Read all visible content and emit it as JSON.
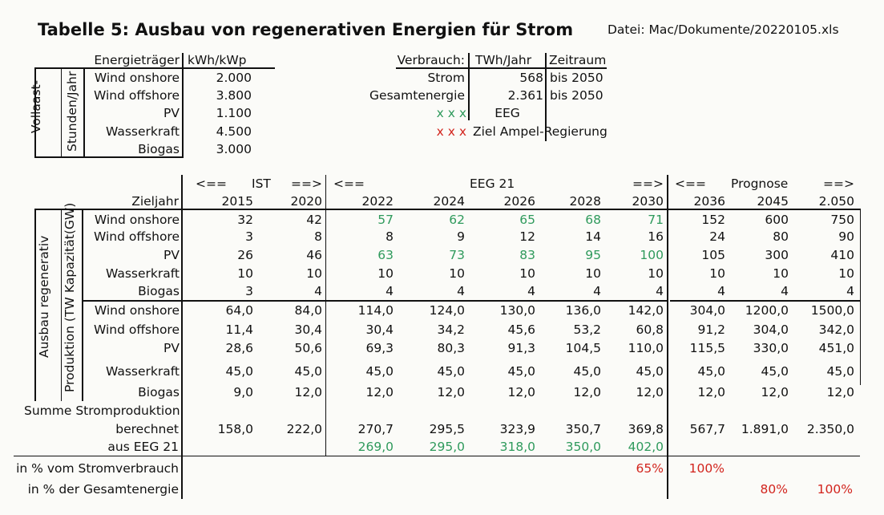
{
  "title": "Tabelle 5: Ausbau von regenerativen Energien für Strom",
  "file": "Datei: Mac/Dokumente/20220105.xls",
  "vollast": {
    "side1": "Vollaast-",
    "side2": "Stunden/Jahr",
    "h1": "Energieträger",
    "h2": "kWh/kWp",
    "rows": [
      {
        "label": "Wind onshore",
        "value": "2.000"
      },
      {
        "label": "Wind offshore",
        "value": "3.800"
      },
      {
        "label": "PV",
        "value": "1.100"
      },
      {
        "label": "Wasserkraft",
        "value": "4.500"
      },
      {
        "label": "Biogas",
        "value": "3.000"
      }
    ]
  },
  "verbrauch": {
    "h1": "Verbrauch:",
    "h2": "TWh/Jahr",
    "h3": "Zeitraum",
    "rows": [
      {
        "label": "Strom",
        "value": "568",
        "period": "bis 2050"
      },
      {
        "label": "Gesamtenergie",
        "value": "2.361",
        "period": "bis 2050"
      }
    ],
    "legend_green_marks": "x x x",
    "legend_green_text": "EEG",
    "legend_red_marks": "x x x",
    "legend_red_text": "Ziel Ampel-Regierung"
  },
  "main": {
    "side1": "Ausbau regenerativ",
    "side_kap": "Kapazität(GW)",
    "side_prod": "Produktion (TW",
    "zieljahr": "Zieljahr",
    "groups": [
      {
        "l": "<==",
        "name": "IST",
        "r": "==>"
      },
      {
        "l": "<==",
        "name": "EEG 21",
        "r": "==>"
      },
      {
        "l": "<==",
        "name": "Prognose",
        "r": "==>"
      }
    ],
    "years": [
      "2015",
      "2020",
      "2022",
      "2024",
      "2026",
      "2028",
      "2030",
      "2036",
      "2045",
      "2.050"
    ],
    "kap": [
      {
        "label": "Wind onshore",
        "values": [
          "32",
          "42",
          "57",
          "62",
          "65",
          "68",
          "71",
          "152",
          "600",
          "750"
        ]
      },
      {
        "label": "Wind offshore",
        "values": [
          "3",
          "8",
          "8",
          "9",
          "12",
          "14",
          "16",
          "24",
          "80",
          "90"
        ]
      },
      {
        "label": "PV",
        "values": [
          "26",
          "46",
          "63",
          "73",
          "83",
          "95",
          "100",
          "105",
          "300",
          "410"
        ]
      },
      {
        "label": "Wasserkraft",
        "values": [
          "10",
          "10",
          "10",
          "10",
          "10",
          "10",
          "10",
          "10",
          "10",
          "10"
        ]
      },
      {
        "label": "Biogas",
        "values": [
          "3",
          "4",
          "4",
          "4",
          "4",
          "4",
          "4",
          "4",
          "4",
          "4"
        ]
      }
    ],
    "prod": [
      {
        "label": "Wind onshore",
        "values": [
          "64,0",
          "84,0",
          "114,0",
          "124,0",
          "130,0",
          "136,0",
          "142,0",
          "304,0",
          "1200,0",
          "1500,0"
        ]
      },
      {
        "label": "Wind offshore",
        "values": [
          "11,4",
          "30,4",
          "30,4",
          "34,2",
          "45,6",
          "53,2",
          "60,8",
          "91,2",
          "304,0",
          "342,0"
        ]
      },
      {
        "label": "PV",
        "values": [
          "28,6",
          "50,6",
          "69,3",
          "80,3",
          "91,3",
          "104,5",
          "110,0",
          "115,5",
          "330,0",
          "451,0"
        ]
      },
      {
        "label": "Wasserkraft",
        "values": [
          "45,0",
          "45,0",
          "45,0",
          "45,0",
          "45,0",
          "45,0",
          "45,0",
          "45,0",
          "45,0",
          "45,0"
        ]
      },
      {
        "label": "Biogas",
        "values": [
          "9,0",
          "12,0",
          "12,0",
          "12,0",
          "12,0",
          "12,0",
          "12,0",
          "12,0",
          "12,0",
          "12,0"
        ]
      }
    ],
    "summe_label": "Summe Stromproduktion",
    "berechnet_label": "berechnet",
    "berechnet": [
      "158,0",
      "222,0",
      "270,7",
      "295,5",
      "323,9",
      "350,7",
      "369,8",
      "567,7",
      "1.891,0",
      "2.350,0"
    ],
    "eeg_label": "aus EEG 21",
    "eeg": [
      "269,0",
      "295,0",
      "318,0",
      "350,0",
      "402,0"
    ],
    "pct_strom_label": "in % vom Stromverbrauch",
    "pct_strom": [
      "65%",
      "100%"
    ],
    "pct_ges_label": "in % der Gesamtenergie",
    "pct_ges": [
      "80%",
      "100%"
    ]
  }
}
